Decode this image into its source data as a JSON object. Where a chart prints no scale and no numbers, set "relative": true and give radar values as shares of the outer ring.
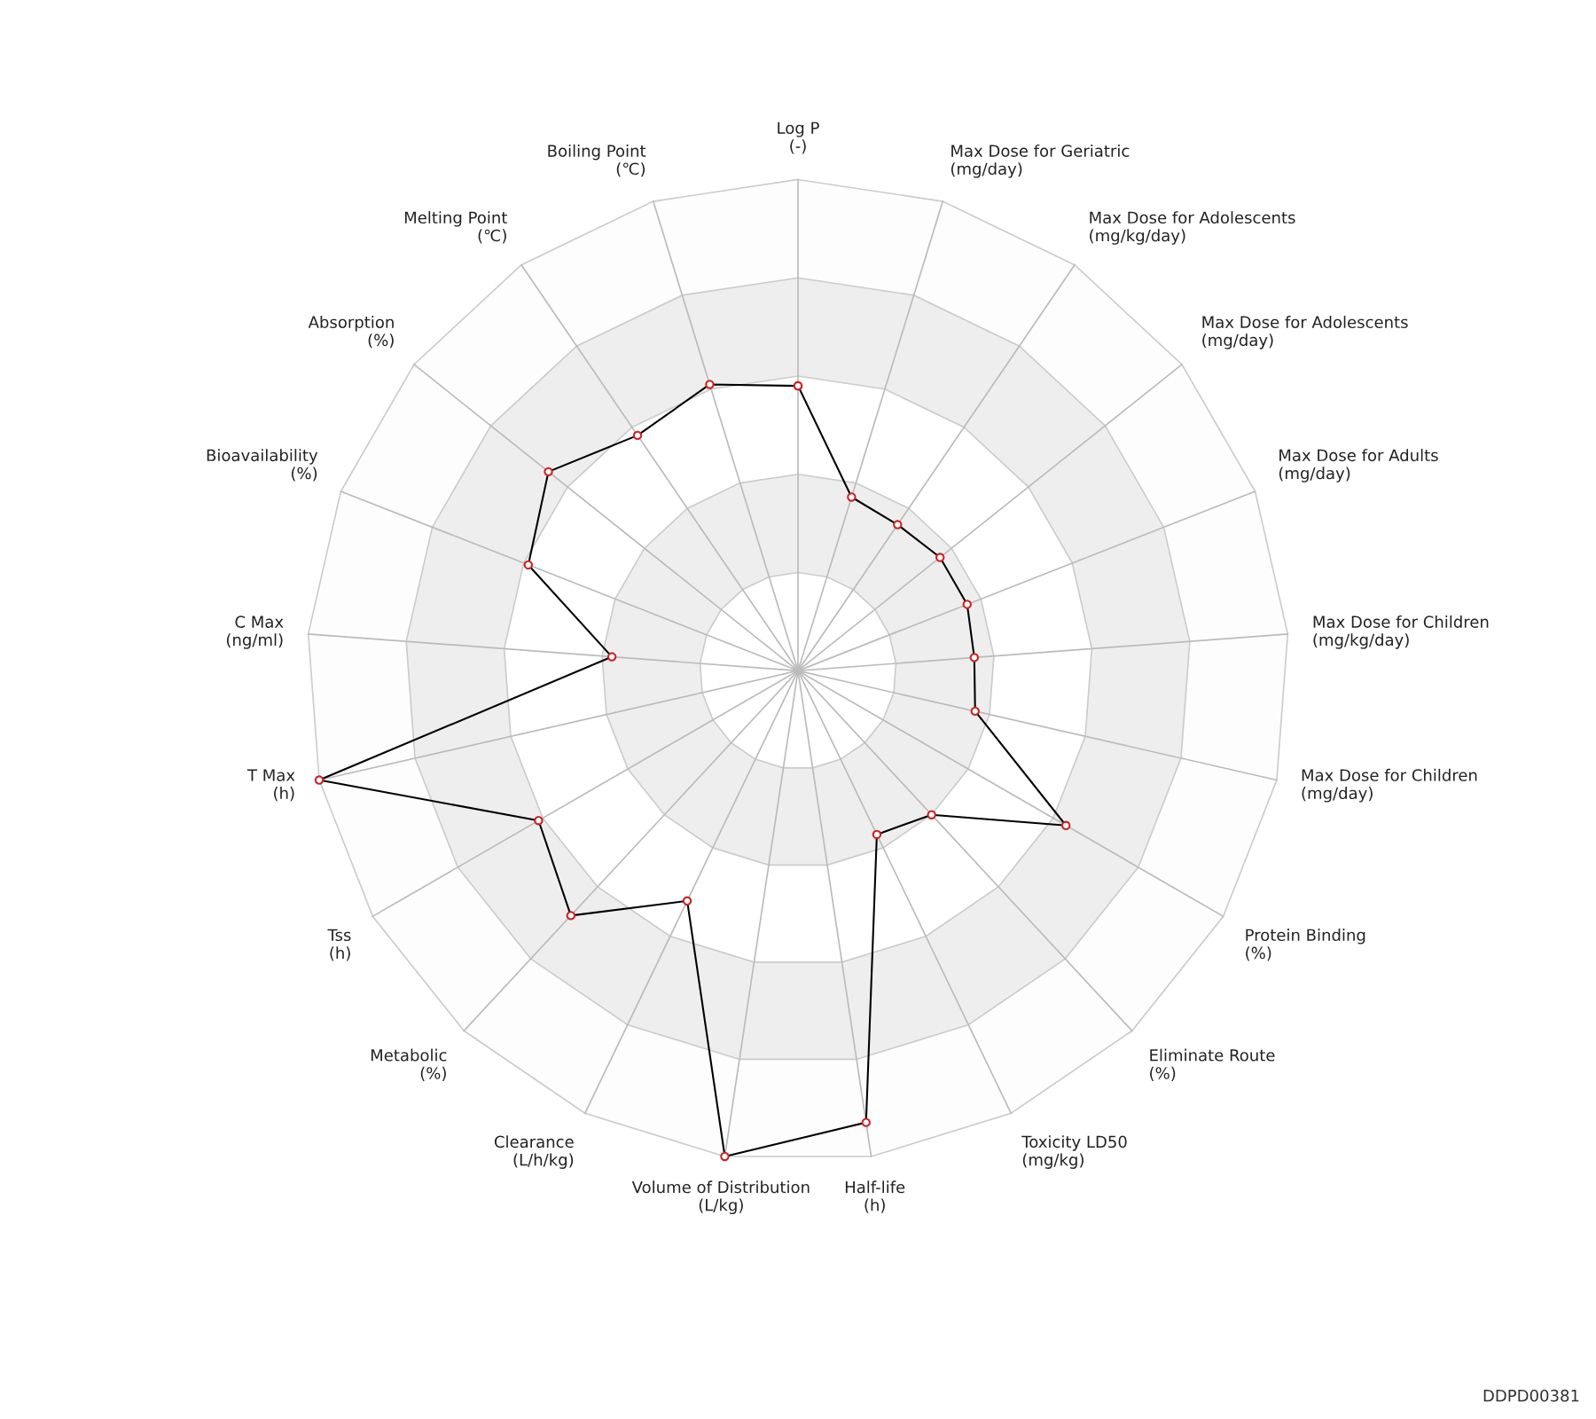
{
  "chart_data": {
    "type": "radar",
    "relative": true,
    "grid": true,
    "marker": "circle",
    "line_style": "solid",
    "categories": [
      "Log P\n(-)",
      "Max Dose for Geriatric\n(mg/day)",
      "Max Dose for Adolescents\n(mg/kg/day)",
      "Max Dose for Adolescents\n(mg/day)",
      "Max Dose for Adults\n(mg/day)",
      "Max Dose for Children\n(mg/kg/day)",
      "Max Dose for Children\n(mg/day)",
      "Protein Binding\n(%)",
      "Eliminate Route\n(%)",
      "Toxicity LD50\n(mg/kg)",
      "Half-life\n(h)",
      "Volume of Distribution\n(L/kg)",
      "Clearance\n(L/h/kg)",
      "Metabolic\n(%)",
      "Tss\n(h)",
      "T Max\n(h)",
      "C Max\n(ng/ml)",
      "Bioavailability\n(%)",
      "Absorption\n(%)",
      "Melting Point\n(℃)",
      "Boiling Point\n(℃)"
    ],
    "series": [
      {
        "color": "#000000",
        "values": [
          0.58,
          0.37,
          0.36,
          0.37,
          0.37,
          0.36,
          0.37,
          0.63,
          0.4,
          0.37,
          0.93,
          1,
          0.52,
          0.68,
          0.61,
          1,
          0.38,
          0.59,
          0.65,
          0.58,
          0.61
        ]
      }
    ],
    "annotations": [
      "DDPD00381"
    ]
  }
}
